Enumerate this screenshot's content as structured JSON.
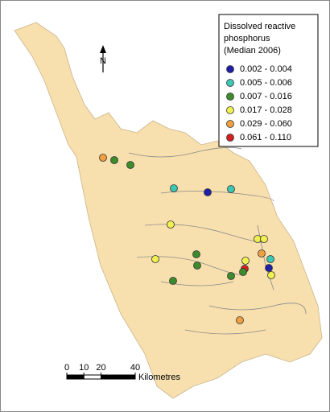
{
  "legend": {
    "title": [
      "Dissolved reactive",
      "phosphorus",
      "(Median 2006)"
    ],
    "items": [
      {
        "label": "0.002 - 0.004",
        "color": "#1f1fa8"
      },
      {
        "label": "0.005 - 0.006",
        "color": "#3cc8b4"
      },
      {
        "label": "0.007 - 0.016",
        "color": "#3c8c2c"
      },
      {
        "label": "0.017 - 0.028",
        "color": "#f0f050"
      },
      {
        "label": "0.029 - 0.060",
        "color": "#f0a040"
      },
      {
        "label": "0.061 - 0.110",
        "color": "#d02020"
      }
    ]
  },
  "north": "N",
  "scale_bar": {
    "ticks": [
      0,
      10,
      20,
      40
    ],
    "unit": "Kilometres"
  }
}
